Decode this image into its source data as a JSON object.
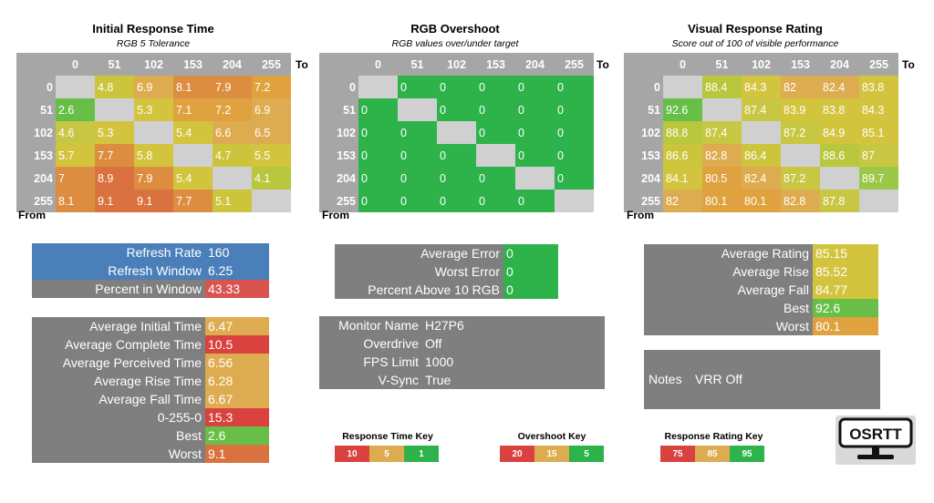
{
  "colors": {
    "header": "#a6a6a6",
    "box": "#7f7f7f",
    "blue": "#4a7fb9",
    "diag": "#d0d0d0"
  },
  "heatmaps": [
    {
      "title": "Initial Response Time",
      "subtitle": "RGB 5 Tolerance",
      "to_label": "To",
      "from_label": "From",
      "cols": [
        "0",
        "51",
        "102",
        "153",
        "204",
        "255"
      ],
      "rows": [
        "0",
        "51",
        "102",
        "153",
        "204",
        "255"
      ],
      "cells": [
        [
          "",
          "4.8",
          "6.9",
          "8.1",
          "7.9",
          "7.2"
        ],
        [
          "2.6",
          "",
          "5.3",
          "7.1",
          "7.2",
          "6.9"
        ],
        [
          "4.6",
          "5.3",
          "",
          "5.4",
          "6.6",
          "6.5"
        ],
        [
          "5.7",
          "7.7",
          "5.8",
          "",
          "4.7",
          "5.5"
        ],
        [
          "7",
          "8.9",
          "7.9",
          "5.4",
          "",
          "4.1"
        ],
        [
          "8.1",
          "9.1",
          "9.1",
          "7.7",
          "5.1",
          ""
        ]
      ],
      "colors": [
        [
          "#d0d0d0",
          "#ccc53b",
          "#deac50",
          "#dc8d40",
          "#dc8d40",
          "#e0a23e"
        ],
        [
          "#67bf48",
          "#d0d0d0",
          "#d3c43e",
          "#e0a23e",
          "#e0a23e",
          "#deac50"
        ],
        [
          "#c8c743",
          "#d3c43e",
          "#d0d0d0",
          "#d3c43e",
          "#deac50",
          "#deac50"
        ],
        [
          "#d3c43e",
          "#dc8d40",
          "#d3c43e",
          "#d0d0d0",
          "#ccc53b",
          "#d3c43e"
        ],
        [
          "#dc8d40",
          "#d9723e",
          "#dc8d40",
          "#d3c43e",
          "#d0d0d0",
          "#b9c73d"
        ],
        [
          "#dc8d40",
          "#d9723e",
          "#d9723e",
          "#dc8d40",
          "#ccc53b",
          "#d0d0d0"
        ]
      ]
    },
    {
      "title": "RGB Overshoot",
      "subtitle": "RGB values over/under target",
      "to_label": "To",
      "from_label": "From",
      "cols": [
        "0",
        "51",
        "102",
        "153",
        "204",
        "255"
      ],
      "rows": [
        "0",
        "51",
        "102",
        "153",
        "204",
        "255"
      ],
      "cells": [
        [
          "",
          "0",
          "0",
          "0",
          "0",
          "0"
        ],
        [
          "0",
          "",
          "0",
          "0",
          "0",
          "0"
        ],
        [
          "0",
          "0",
          "",
          "0",
          "0",
          "0"
        ],
        [
          "0",
          "0",
          "0",
          "",
          "0",
          "0"
        ],
        [
          "0",
          "0",
          "0",
          "0",
          "",
          "0"
        ],
        [
          "0",
          "0",
          "0",
          "0",
          "0",
          ""
        ]
      ],
      "colors": [
        [
          "#d0d0d0",
          "#2db34a",
          "#2db34a",
          "#2db34a",
          "#2db34a",
          "#2db34a"
        ],
        [
          "#2db34a",
          "#d0d0d0",
          "#2db34a",
          "#2db34a",
          "#2db34a",
          "#2db34a"
        ],
        [
          "#2db34a",
          "#2db34a",
          "#d0d0d0",
          "#2db34a",
          "#2db34a",
          "#2db34a"
        ],
        [
          "#2db34a",
          "#2db34a",
          "#2db34a",
          "#d0d0d0",
          "#2db34a",
          "#2db34a"
        ],
        [
          "#2db34a",
          "#2db34a",
          "#2db34a",
          "#2db34a",
          "#d0d0d0",
          "#2db34a"
        ],
        [
          "#2db34a",
          "#2db34a",
          "#2db34a",
          "#2db34a",
          "#2db34a",
          "#d0d0d0"
        ]
      ]
    },
    {
      "title": "Visual Response Rating",
      "subtitle": "Score out of 100 of visible performance",
      "to_label": "To",
      "from_label": "From",
      "cols": [
        "0",
        "51",
        "102",
        "153",
        "204",
        "255"
      ],
      "rows": [
        "0",
        "51",
        "102",
        "153",
        "204",
        "255"
      ],
      "cells": [
        [
          "",
          "88.4",
          "84.3",
          "82",
          "82.4",
          "83.8"
        ],
        [
          "92.6",
          "",
          "87.4",
          "83.9",
          "83.8",
          "84.3"
        ],
        [
          "88.8",
          "87.4",
          "",
          "87.2",
          "84.9",
          "85.1"
        ],
        [
          "86.6",
          "82.8",
          "86.4",
          "",
          "88.6",
          "87"
        ],
        [
          "84.1",
          "80.5",
          "82.4",
          "87.2",
          "",
          "89.7"
        ],
        [
          "82",
          "80.1",
          "80.1",
          "82.8",
          "87.8",
          ""
        ]
      ],
      "colors": [
        [
          "#d0d0d0",
          "#b9c73d",
          "#d3c43e",
          "#deac50",
          "#deac50",
          "#d3c43e"
        ],
        [
          "#67bf48",
          "#d0d0d0",
          "#c8c743",
          "#d3c43e",
          "#d3c43e",
          "#d3c43e"
        ],
        [
          "#b9c73d",
          "#c8c743",
          "#d0d0d0",
          "#c8c743",
          "#d3c43e",
          "#d3c43e"
        ],
        [
          "#ccc53b",
          "#deac50",
          "#ccc53b",
          "#d0d0d0",
          "#b9c73d",
          "#c8c743"
        ],
        [
          "#d3c43e",
          "#e0a23e",
          "#deac50",
          "#c8c743",
          "#d0d0d0",
          "#9cc84a"
        ],
        [
          "#deac50",
          "#e0a23e",
          "#e0a23e",
          "#deac50",
          "#c8c743",
          "#d0d0d0"
        ]
      ]
    }
  ],
  "refresh": {
    "rows": [
      {
        "label": "Refresh Rate",
        "value": "160",
        "lab_bg": "#4a7fb9",
        "val_bg": "#4a7fb9"
      },
      {
        "label": "Refresh Window",
        "value": "6.25",
        "lab_bg": "#4a7fb9",
        "val_bg": "#4a7fb9"
      },
      {
        "label": "Percent in Window",
        "value": "43.33",
        "lab_bg": "#7f7f7f",
        "val_bg": "#d9534f"
      }
    ]
  },
  "timing": {
    "rows": [
      {
        "label": "Average Initial Time",
        "value": "6.47",
        "val_bg": "#deac50"
      },
      {
        "label": "Average Complete Time",
        "value": "10.5",
        "val_bg": "#d9423e"
      },
      {
        "label": "Average Perceived Time",
        "value": "6.56",
        "val_bg": "#deac50"
      },
      {
        "label": "Average Rise Time",
        "value": "6.28",
        "val_bg": "#deac50"
      },
      {
        "label": "Average Fall Time",
        "value": "6.67",
        "val_bg": "#deac50"
      },
      {
        "label": "0-255-0",
        "value": "15.3",
        "val_bg": "#d9423e"
      },
      {
        "label": "Best",
        "value": "2.6",
        "val_bg": "#67bf48"
      },
      {
        "label": "Worst",
        "value": "9.1",
        "val_bg": "#d9723e"
      }
    ]
  },
  "error": {
    "rows": [
      {
        "label": "Average Error",
        "value": "0",
        "val_bg": "#2db34a"
      },
      {
        "label": "Worst Error",
        "value": "0",
        "val_bg": "#2db34a"
      },
      {
        "label": "Percent Above 10 RGB",
        "value": "0",
        "val_bg": "#2db34a"
      }
    ]
  },
  "monitor": {
    "rows": [
      {
        "label": "Monitor Name",
        "value": "H27P6"
      },
      {
        "label": "Overdrive",
        "value": "Off"
      },
      {
        "label": "FPS Limit",
        "value": "1000"
      },
      {
        "label": "V-Sync",
        "value": "True"
      }
    ]
  },
  "rating": {
    "rows": [
      {
        "label": "Average Rating",
        "value": "85.15",
        "val_bg": "#d3c43e"
      },
      {
        "label": "Average Rise",
        "value": "85.52",
        "val_bg": "#d3c43e"
      },
      {
        "label": "Average Fall",
        "value": "84.77",
        "val_bg": "#d3c43e"
      },
      {
        "label": "Best",
        "value": "92.6",
        "val_bg": "#67bf48"
      },
      {
        "label": "Worst",
        "value": "80.1",
        "val_bg": "#e0a23e"
      }
    ]
  },
  "notes": {
    "label": "Notes",
    "value": "VRR Off"
  },
  "keys": [
    {
      "title": "Response Time Key",
      "items": [
        {
          "v": "10",
          "c": "#d9423e"
        },
        {
          "v": "5",
          "c": "#deac50"
        },
        {
          "v": "1",
          "c": "#2db34a"
        }
      ]
    },
    {
      "title": "Overshoot Key",
      "items": [
        {
          "v": "20",
          "c": "#d9423e"
        },
        {
          "v": "15",
          "c": "#deac50"
        },
        {
          "v": "5",
          "c": "#2db34a"
        }
      ]
    },
    {
      "title": "Response Rating Key",
      "items": [
        {
          "v": "75",
          "c": "#d9423e"
        },
        {
          "v": "85",
          "c": "#deac50"
        },
        {
          "v": "95",
          "c": "#2db34a"
        }
      ]
    }
  ],
  "logo": {
    "text": "OSRTT"
  },
  "chart_data": [
    {
      "type": "heatmap",
      "title": "Initial Response Time",
      "subtitle": "RGB 5 Tolerance",
      "xlabel": "To",
      "ylabel": "From",
      "x": [
        "0",
        "51",
        "102",
        "153",
        "204",
        "255"
      ],
      "y": [
        "0",
        "51",
        "102",
        "153",
        "204",
        "255"
      ],
      "values": [
        [
          null,
          4.8,
          6.9,
          8.1,
          7.9,
          7.2
        ],
        [
          2.6,
          null,
          5.3,
          7.1,
          7.2,
          6.9
        ],
        [
          4.6,
          5.3,
          null,
          5.4,
          6.6,
          6.5
        ],
        [
          5.7,
          7.7,
          5.8,
          null,
          4.7,
          5.5
        ],
        [
          7,
          8.9,
          7.9,
          5.4,
          null,
          4.1
        ],
        [
          8.1,
          9.1,
          9.1,
          7.7,
          5.1,
          null
        ]
      ]
    },
    {
      "type": "heatmap",
      "title": "RGB Overshoot",
      "subtitle": "RGB values over/under target",
      "xlabel": "To",
      "ylabel": "From",
      "x": [
        "0",
        "51",
        "102",
        "153",
        "204",
        "255"
      ],
      "y": [
        "0",
        "51",
        "102",
        "153",
        "204",
        "255"
      ],
      "values": [
        [
          null,
          0,
          0,
          0,
          0,
          0
        ],
        [
          0,
          null,
          0,
          0,
          0,
          0
        ],
        [
          0,
          0,
          null,
          0,
          0,
          0
        ],
        [
          0,
          0,
          0,
          null,
          0,
          0
        ],
        [
          0,
          0,
          0,
          0,
          null,
          0
        ],
        [
          0,
          0,
          0,
          0,
          0,
          null
        ]
      ]
    },
    {
      "type": "heatmap",
      "title": "Visual Response Rating",
      "subtitle": "Score out of 100 of visible performance",
      "xlabel": "To",
      "ylabel": "From",
      "x": [
        "0",
        "51",
        "102",
        "153",
        "204",
        "255"
      ],
      "y": [
        "0",
        "51",
        "102",
        "153",
        "204",
        "255"
      ],
      "values": [
        [
          null,
          88.4,
          84.3,
          82,
          82.4,
          83.8
        ],
        [
          92.6,
          null,
          87.4,
          83.9,
          83.8,
          84.3
        ],
        [
          88.8,
          87.4,
          null,
          87.2,
          84.9,
          85.1
        ],
        [
          86.6,
          82.8,
          86.4,
          null,
          88.6,
          87
        ],
        [
          84.1,
          80.5,
          82.4,
          87.2,
          null,
          89.7
        ],
        [
          82,
          80.1,
          80.1,
          82.8,
          87.8,
          null
        ]
      ]
    }
  ]
}
